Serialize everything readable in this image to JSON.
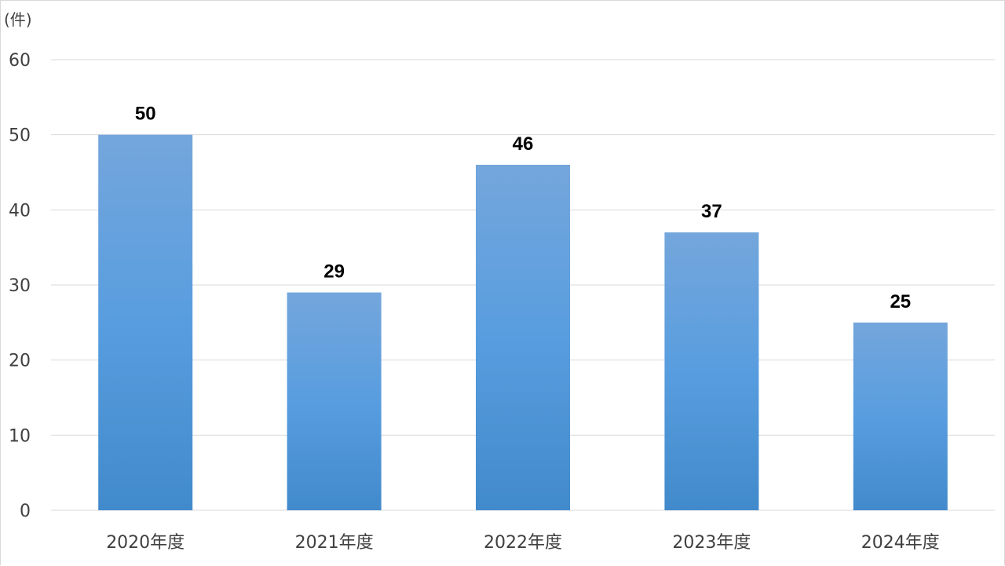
{
  "chart_data": {
    "type": "bar",
    "unit_label": "(件)",
    "categories": [
      "2020年度",
      "2021年度",
      "2022年度",
      "2023年度",
      "2024年度"
    ],
    "values": [
      50,
      29,
      46,
      37,
      25
    ],
    "ylim": [
      0,
      60
    ],
    "yticks": [
      0,
      10,
      20,
      30,
      40,
      50,
      60
    ],
    "grid": true,
    "data_labels": true,
    "colors": {
      "bar_top": "#74a6dc",
      "bar_mid": "#589ddf",
      "bar_bottom": "#418acb",
      "grid": "#d9d9d9",
      "axis_text": "#404040",
      "data_label": "#000000"
    }
  }
}
